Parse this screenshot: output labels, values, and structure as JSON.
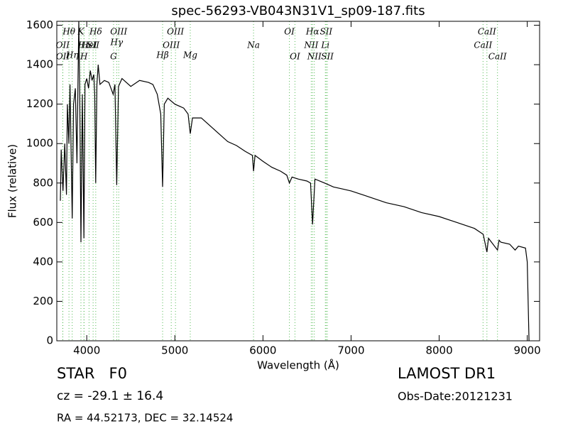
{
  "chart_data": {
    "type": "line",
    "title": "spec-56293-VB043N31V1_sp09-187.fits",
    "x_label": "Wavelength (Å)",
    "y_label": "Flux (relative)",
    "xlim": [
      3660,
      9140
    ],
    "ylim": [
      0,
      1620
    ],
    "xticks": [
      4000,
      5000,
      6000,
      7000,
      8000,
      9000
    ],
    "yticks": [
      0,
      200,
      400,
      600,
      800,
      1000,
      1200,
      1400,
      1600
    ],
    "series": [
      {
        "color": "#000000",
        "x": [
          3700,
          3710,
          3730,
          3750,
          3770,
          3780,
          3797,
          3810,
          3835,
          3850,
          3870,
          3889,
          3900,
          3910,
          3920,
          3934,
          3950,
          3968,
          3980,
          4000,
          4020,
          4040,
          4060,
          4080,
          4090,
          4102,
          4115,
          4130,
          4150,
          4200,
          4250,
          4300,
          4320,
          4340,
          4360,
          4400,
          4500,
          4600,
          4700,
          4750,
          4800,
          4840,
          4861,
          4880,
          4920,
          5000,
          5100,
          5150,
          5175,
          5200,
          5300,
          5400,
          5500,
          5600,
          5700,
          5800,
          5880,
          5893,
          5910,
          6000,
          6100,
          6200,
          6270,
          6300,
          6330,
          6400,
          6500,
          6540,
          6563,
          6590,
          6700,
          6800,
          6900,
          7000,
          7200,
          7400,
          7600,
          7800,
          8000,
          8200,
          8400,
          8500,
          8542,
          8560,
          8662,
          8680,
          8700,
          8800,
          8862,
          8900,
          8980,
          9000,
          9020
        ],
        "values": [
          710,
          970,
          760,
          1000,
          740,
          1200,
          1000,
          1300,
          620,
          1200,
          1280,
          900,
          1300,
          1620,
          1250,
          500,
          1250,
          520,
          1300,
          1330,
          1280,
          1370,
          1320,
          1350,
          1250,
          800,
          1300,
          1400,
          1300,
          1320,
          1310,
          1250,
          1300,
          790,
          1290,
          1330,
          1290,
          1320,
          1310,
          1300,
          1250,
          1150,
          780,
          1200,
          1230,
          1200,
          1180,
          1150,
          1050,
          1130,
          1130,
          1090,
          1050,
          1010,
          990,
          960,
          940,
          860,
          940,
          910,
          880,
          860,
          840,
          800,
          830,
          820,
          810,
          800,
          590,
          820,
          800,
          780,
          770,
          760,
          730,
          700,
          680,
          650,
          630,
          600,
          570,
          540,
          450,
          520,
          460,
          510,
          500,
          490,
          460,
          480,
          470,
          400,
          0
        ]
      }
    ],
    "lines": {
      "color": "#55bb55",
      "labels": [
        "Hθ",
        "K",
        "Hδ",
        "OIII",
        "OIII",
        "OI",
        "Hα",
        "SII",
        "CaII",
        "OII",
        "Hε",
        "HeI",
        "SII",
        "Hγ",
        "OIII",
        "Na",
        "NII",
        "Li",
        "CaII",
        "OII",
        "Hη",
        "H",
        "G",
        "Hβ",
        "Mg",
        "OI",
        "NII",
        "SII",
        "CaII"
      ],
      "x": [
        3798,
        3934,
        4102,
        4363,
        5007,
        6300,
        6563,
        6717,
        8542,
        3727,
        3970,
        4026,
        4072,
        4340,
        4959,
        5893,
        6548,
        6708,
        8498,
        3729,
        3835,
        3968,
        4304,
        4861,
        5175,
        6363,
        6583,
        6731,
        8662
      ]
    },
    "annotations": {
      "object": "STAR   F0",
      "cz": "cz = -29.1 ± 16.4",
      "coords": "RA = 44.52173, DEC = 32.14524",
      "survey": "LAMOST DR1",
      "obs_date": "Obs-Date:20121231"
    }
  }
}
